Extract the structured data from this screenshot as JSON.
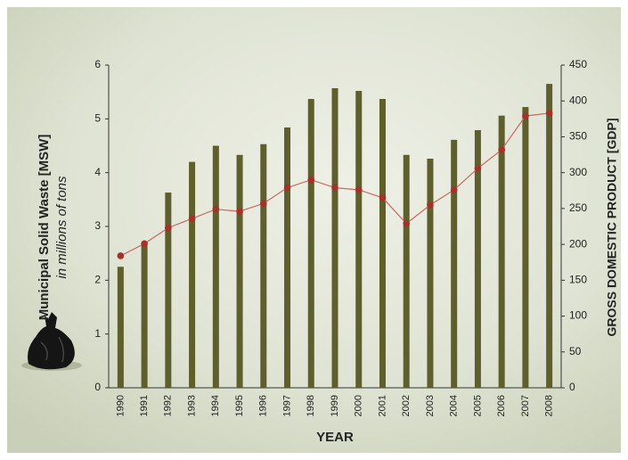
{
  "chart_data": {
    "type": "bar",
    "ylabel": "Municipal Solid Waste [MSW]",
    "ylabel_sub": "in millions of tons",
    "y2label": "GROSS DOMESTIC PRODUCT [GDP]",
    "xlabel": "YEAR",
    "categories": [
      "1990",
      "1991",
      "1992",
      "1993",
      "1994",
      "1995",
      "1996",
      "1997",
      "1998",
      "1999",
      "2000",
      "2001",
      "2002",
      "2003",
      "2004",
      "2005",
      "2006",
      "2007",
      "2008"
    ],
    "series": [
      {
        "type": "bar",
        "color": "#5e5f2c",
        "values": [
          2.25,
          2.7,
          3.63,
          4.2,
          4.5,
          4.33,
          4.53,
          4.84,
          5.37,
          5.57,
          5.52,
          5.37,
          4.33,
          4.26,
          4.61,
          4.79,
          5.06,
          5.22,
          5.65
        ]
      },
      {
        "type": "line",
        "axis": "y2",
        "color": "#c86a62",
        "marker_color": "#a5322a",
        "values": [
          184,
          201,
          223,
          236,
          249,
          246,
          257,
          279,
          290,
          279,
          276,
          265,
          229,
          255,
          276,
          306,
          332,
          379,
          383
        ]
      }
    ],
    "ylim": [
      0,
      6
    ],
    "yticks": [
      0,
      1,
      2,
      3,
      4,
      5,
      6
    ],
    "y2lim": [
      0,
      450
    ],
    "y2ticks": [
      0,
      50,
      100,
      150,
      200,
      250,
      300,
      350,
      400,
      450
    ]
  }
}
